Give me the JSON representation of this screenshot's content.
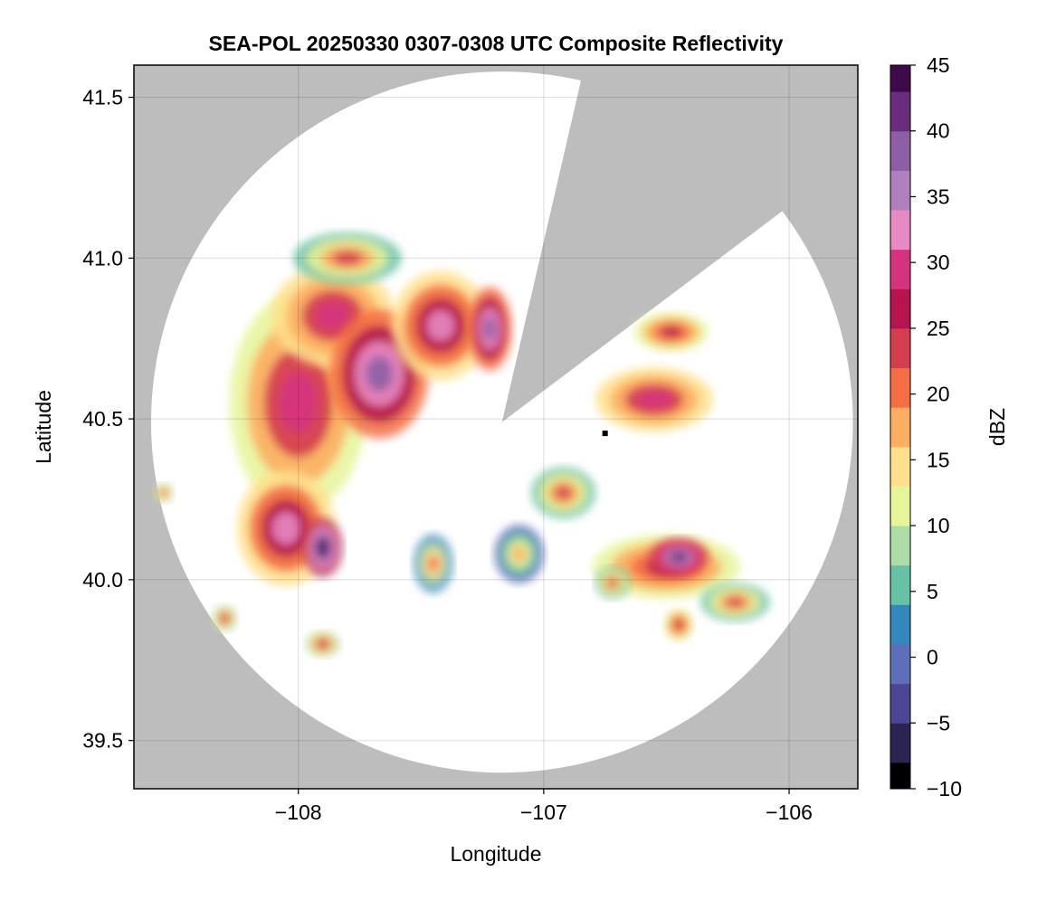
{
  "chart_data": {
    "type": "heatmap",
    "title": "SEA-POL 20250330 0307-0308 UTC Composite Reflectivity",
    "xlabel": "Longitude",
    "ylabel": "Latitude",
    "xlim": [
      -108.67,
      -105.72
    ],
    "ylim": [
      39.35,
      41.6
    ],
    "xticks": [
      -108,
      -107,
      -106
    ],
    "xtick_labels": [
      "−108",
      "−107",
      "−106"
    ],
    "yticks": [
      39.5,
      40.0,
      40.5,
      41.0,
      41.5
    ],
    "ytick_labels": [
      "39.5",
      "40.0",
      "40.5",
      "41.0",
      "41.5"
    ],
    "grid": true,
    "background_color": "#bdbdbd",
    "radar": {
      "center_lon": -107.17,
      "center_lat": 40.49,
      "range_lon": 1.43,
      "range_lat": 1.09,
      "blocked_sectors_deg_from_north": [
        [
          13,
          53
        ]
      ],
      "site_marker": {
        "lon": -106.75,
        "lat": 40.455
      }
    },
    "colorbar": {
      "label": "dBZ",
      "min": -10,
      "max": 45,
      "ticks": [
        -10,
        -5,
        0,
        5,
        10,
        15,
        20,
        25,
        30,
        35,
        40,
        45
      ],
      "tick_labels": [
        "−10",
        "−5",
        "0",
        "5",
        "10",
        "15",
        "20",
        "25",
        "30",
        "35",
        "40",
        "45"
      ],
      "colormap": [
        "#000004",
        "#2b2450",
        "#4d4596",
        "#5e6eb8",
        "#3288bd",
        "#66c2a5",
        "#abdda4",
        "#e6f598",
        "#fee08b",
        "#fdae61",
        "#f46d43",
        "#d53e4f",
        "#b5144e",
        "#d6337f",
        "#e78ac3",
        "#b07fbe",
        "#8c5ea6",
        "#6a2d7d",
        "#3f0a4a"
      ]
    },
    "echoes": [
      {
        "name": "western-band",
        "lon": -108.0,
        "lat": 40.55,
        "rx": 0.28,
        "ry": 0.34,
        "dbz": 24
      },
      {
        "name": "western-band-upper",
        "lon": -107.86,
        "lat": 40.82,
        "rx": 0.25,
        "ry": 0.16,
        "dbz": 25
      },
      {
        "name": "western-core",
        "lon": -107.67,
        "lat": 40.64,
        "rx": 0.2,
        "ry": 0.2,
        "dbz": 32
      },
      {
        "name": "southwest-lobe",
        "lon": -108.05,
        "lat": 40.16,
        "rx": 0.2,
        "ry": 0.18,
        "dbz": 27
      },
      {
        "name": "southwest-core",
        "lon": -107.9,
        "lat": 40.1,
        "rx": 0.08,
        "ry": 0.09,
        "dbz": 38
      },
      {
        "name": "northern-fingers",
        "lon": -107.42,
        "lat": 40.79,
        "rx": 0.2,
        "ry": 0.17,
        "dbz": 27
      },
      {
        "name": "northern-core",
        "lon": -107.22,
        "lat": 40.78,
        "rx": 0.09,
        "ry": 0.13,
        "dbz": 34
      },
      {
        "name": "northwest-fringe",
        "lon": -107.8,
        "lat": 41.0,
        "rx": 0.22,
        "ry": 0.08,
        "dbz": 18
      },
      {
        "name": "east-cell",
        "lon": -106.55,
        "lat": 40.56,
        "rx": 0.24,
        "ry": 0.1,
        "dbz": 25
      },
      {
        "name": "east-cell-north",
        "lon": -106.48,
        "lat": 40.77,
        "rx": 0.15,
        "ry": 0.06,
        "dbz": 22
      },
      {
        "name": "central-cell",
        "lon": -106.92,
        "lat": 40.27,
        "rx": 0.13,
        "ry": 0.08,
        "dbz": 17
      },
      {
        "name": "southeast-band",
        "lon": -106.5,
        "lat": 40.04,
        "rx": 0.3,
        "ry": 0.1,
        "dbz": 22
      },
      {
        "name": "southeast-core",
        "lon": -106.45,
        "lat": 40.07,
        "rx": 0.12,
        "ry": 0.06,
        "dbz": 36
      },
      {
        "name": "southeast-tail",
        "lon": -106.22,
        "lat": 39.93,
        "rx": 0.14,
        "ry": 0.06,
        "dbz": 17
      },
      {
        "name": "south-scattered-1",
        "lon": -107.1,
        "lat": 40.08,
        "rx": 0.1,
        "ry": 0.09,
        "dbz": 12
      },
      {
        "name": "south-scattered-2",
        "lon": -107.45,
        "lat": 40.05,
        "rx": 0.08,
        "ry": 0.09,
        "dbz": 14
      },
      {
        "name": "south-scattered-3",
        "lon": -106.72,
        "lat": 39.99,
        "rx": 0.07,
        "ry": 0.05,
        "dbz": 18
      },
      {
        "name": "south-scattered-4",
        "lon": -106.45,
        "lat": 39.86,
        "rx": 0.06,
        "ry": 0.05,
        "dbz": 22
      },
      {
        "name": "far-southwest-1",
        "lon": -108.3,
        "lat": 39.88,
        "rx": 0.05,
        "ry": 0.04,
        "dbz": 21
      },
      {
        "name": "far-southwest-2",
        "lon": -107.9,
        "lat": 39.8,
        "rx": 0.07,
        "ry": 0.04,
        "dbz": 20
      },
      {
        "name": "far-west",
        "lon": -108.55,
        "lat": 40.27,
        "rx": 0.04,
        "ry": 0.03,
        "dbz": 19
      }
    ]
  }
}
